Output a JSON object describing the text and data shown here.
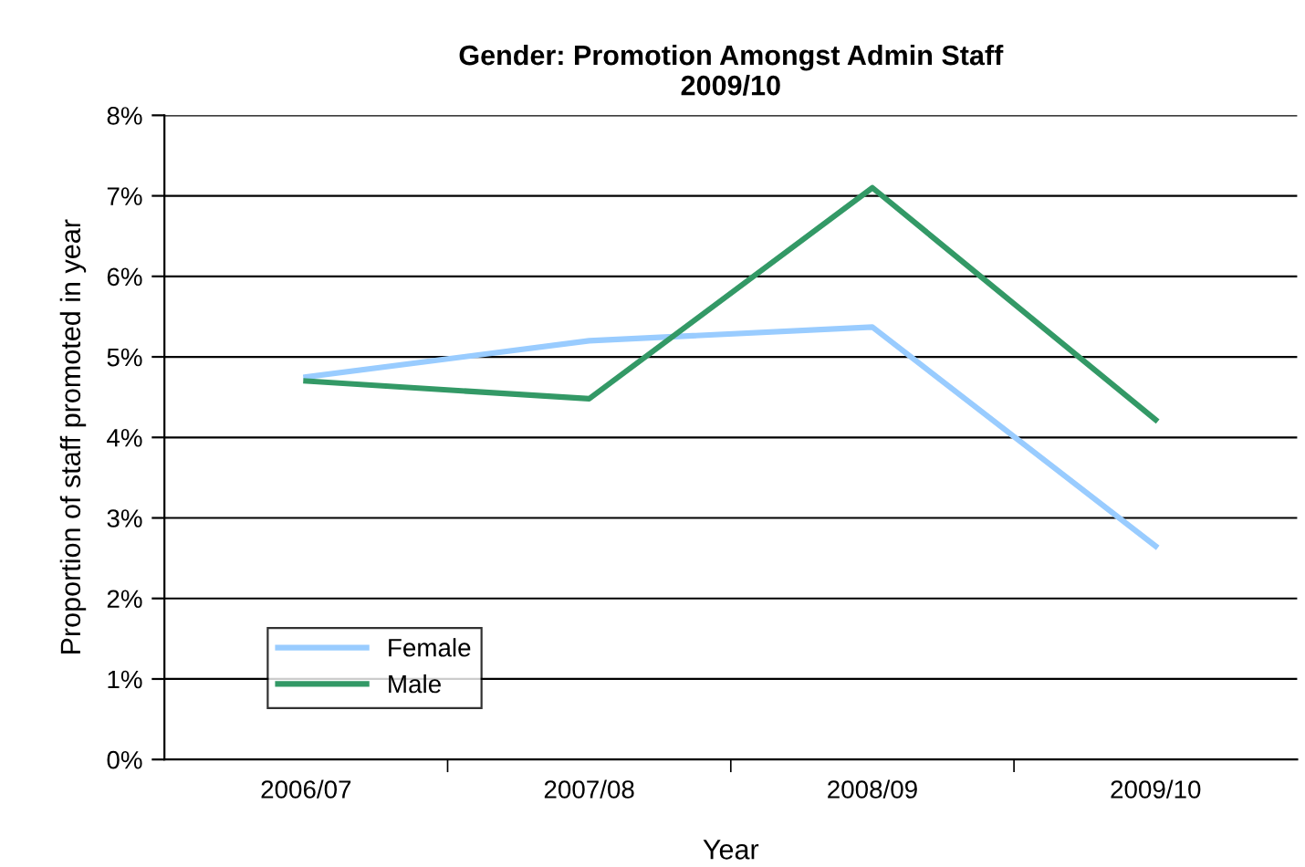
{
  "chart_data": {
    "type": "line",
    "title": "Gender: Promotion Amongst Admin Staff\n2009/10",
    "xlabel": "Year",
    "ylabel": "Proportion of staff promoted in year",
    "categories": [
      "2006/07",
      "2007/08",
      "2008/09",
      "2009/10"
    ],
    "series": [
      {
        "name": "Female",
        "color": "#99ccff",
        "values": [
          4.75,
          5.2,
          5.37,
          2.65
        ]
      },
      {
        "name": "Male",
        "color": "#339966",
        "values": [
          4.7,
          4.48,
          7.1,
          4.22
        ]
      }
    ],
    "ylim": [
      0,
      8
    ],
    "yticks": [
      {
        "value": 0,
        "label": "0%"
      },
      {
        "value": 1,
        "label": "1%"
      },
      {
        "value": 2,
        "label": "2%"
      },
      {
        "value": 3,
        "label": "3%"
      },
      {
        "value": 4,
        "label": "4%"
      },
      {
        "value": 5,
        "label": "5%"
      },
      {
        "value": 6,
        "label": "6%"
      },
      {
        "value": 7,
        "label": "7%"
      },
      {
        "value": 8,
        "label": "8%"
      }
    ],
    "grid": "y",
    "legend": "bottom left",
    "marker": "none",
    "line_style": "solid"
  }
}
